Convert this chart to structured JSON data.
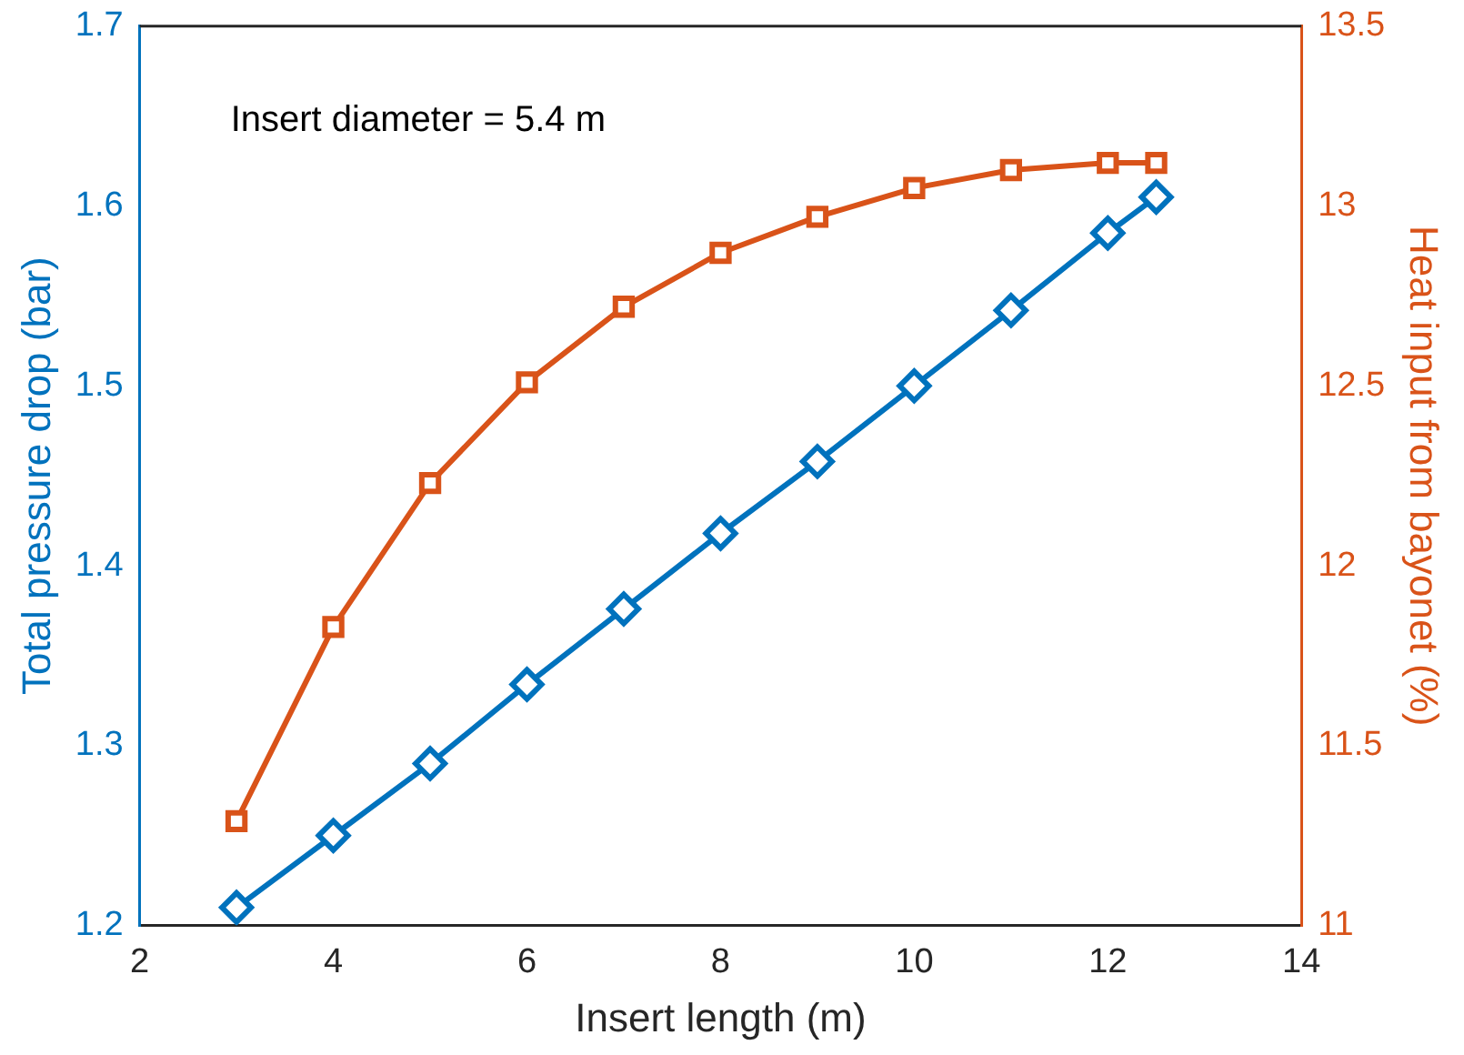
{
  "chart_data": {
    "type": "line",
    "xlabel": "Insert length (m)",
    "ylabel": "Total pressure drop (bar)",
    "y2label": "Heat input from bayonet (%)",
    "annotations": [
      "Insert diameter = 5.4 m"
    ],
    "x": [
      3,
      4,
      5,
      6,
      7,
      8,
      9,
      10,
      11,
      12,
      12.5
    ],
    "series": [
      {
        "color": "#0072bd",
        "marker": "diamond",
        "values": [
          1.21,
          1.25,
          1.29,
          1.334,
          1.376,
          1.418,
          1.458,
          1.5,
          1.542,
          1.585,
          1.605
        ]
      },
      {
        "color": "#d95319",
        "marker": "square",
        "axis": "y2",
        "values": [
          11.29,
          11.83,
          12.23,
          12.51,
          12.72,
          12.87,
          12.97,
          13.05,
          13.1,
          13.12,
          13.12
        ]
      }
    ],
    "xlim": [
      2,
      14
    ],
    "xticks": [
      2,
      4,
      6,
      8,
      10,
      12,
      14
    ],
    "ylim": [
      1.2,
      1.7
    ],
    "yticks": [
      1.2,
      1.3,
      1.4,
      1.5,
      1.6,
      1.7
    ],
    "y2lim": [
      11,
      13.5
    ],
    "y2ticks": [
      11,
      11.5,
      12,
      12.5,
      13,
      13.5
    ],
    "grid": false,
    "legend": false,
    "line_style": "solid"
  }
}
